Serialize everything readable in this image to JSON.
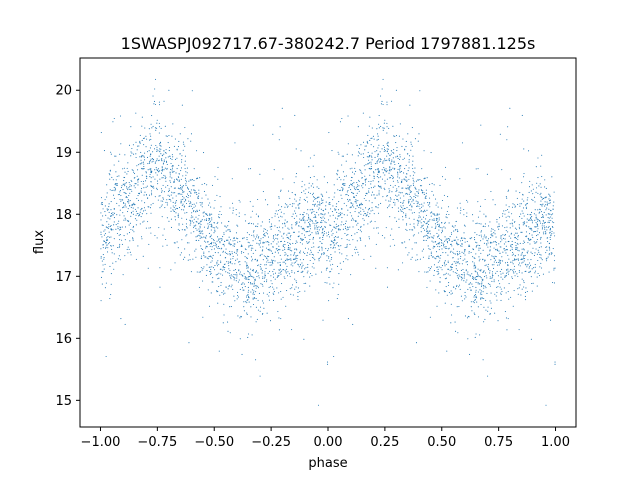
{
  "chart_data": {
    "type": "scatter",
    "title": "1SWASPJ092717.67-380242.7 Period 1797881.125s",
    "xlabel": "phase",
    "ylabel": "flux",
    "xlim": [
      -1.09,
      1.09
    ],
    "ylim": [
      14.57,
      20.52
    ],
    "xticks": [
      -1.0,
      -0.75,
      -0.5,
      -0.25,
      0.0,
      0.25,
      0.5,
      0.75,
      1.0
    ],
    "xtick_labels": [
      "−1.00",
      "−0.75",
      "−0.50",
      "−0.25",
      "0.00",
      "0.25",
      "0.50",
      "0.75",
      "1.00"
    ],
    "yticks": [
      15,
      16,
      17,
      18,
      19,
      20
    ],
    "ytick_labels": [
      "15",
      "16",
      "17",
      "18",
      "19",
      "20"
    ],
    "grid": false,
    "marker_color": "#1f77b4",
    "series": [
      {
        "phase_range": [
          -1.0,
          1.0
        ],
        "profile_phase": [
          0.0,
          0.05,
          0.1,
          0.15,
          0.2,
          0.25,
          0.3,
          0.35,
          0.4,
          0.45,
          0.5,
          0.55,
          0.6,
          0.65,
          0.7,
          0.75,
          0.8,
          0.85,
          0.9,
          0.95,
          1.0
        ],
        "profile_flux": [
          17.6,
          17.9,
          18.1,
          18.3,
          18.6,
          18.7,
          18.5,
          18.3,
          18.1,
          17.8,
          17.5,
          17.3,
          17.2,
          17.1,
          17.2,
          17.35,
          17.45,
          17.5,
          17.7,
          18.0,
          17.6
        ],
        "scatter_sigma": 0.45
      }
    ]
  }
}
